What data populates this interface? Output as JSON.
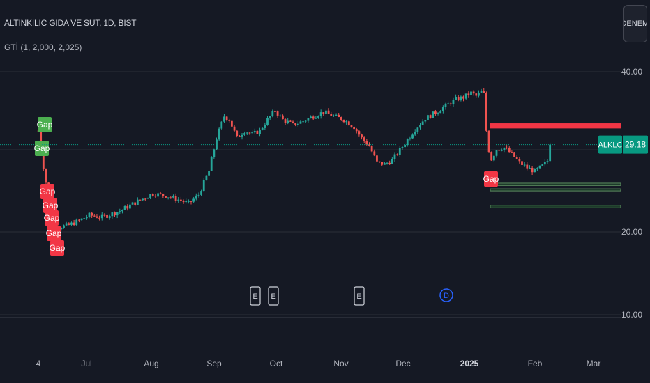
{
  "header": {
    "title": "ALTINKILIC GIDA VE SUT, 1D, BIST",
    "indicator": "GTİ (1, 2,000, 2,025)",
    "tag_button": "DENEME"
  },
  "colors": {
    "background": "#151924",
    "up": "#26a69a",
    "down": "#ef5350",
    "grid": "#2a2e39",
    "axis_text": "#b2b5be",
    "last_price": "#089981",
    "zone_red": "#f23645",
    "zone_green": "#4caf50",
    "gap_green": "#4caf50",
    "gap_red": "#f23645"
  },
  "chart_data": {
    "type": "candlestick",
    "title": "ALTINKILIC GIDA VE SUT, 1D, BIST",
    "x_tick_labels": [
      "4",
      "Jul",
      "Aug",
      "Sep",
      "Oct",
      "Nov",
      "Dec",
      "2025",
      "Feb",
      "Mar"
    ],
    "y_tick_labels": [
      "40.00",
      "20.00",
      "10.00"
    ],
    "y_scale": "log",
    "ylim": [
      9.5,
      52
    ],
    "grid": true,
    "last_price": {
      "symbol": "ALKLC",
      "value": "29.18"
    },
    "gap_labels": [
      {
        "text": "Gap",
        "kind": "up"
      },
      {
        "text": "Gap",
        "kind": "up"
      },
      {
        "text": "Gap",
        "kind": "down"
      },
      {
        "text": "Gap",
        "kind": "down"
      },
      {
        "text": "Gap",
        "kind": "down"
      },
      {
        "text": "Gap",
        "kind": "down"
      },
      {
        "text": "Gap",
        "kind": "down"
      },
      {
        "text": "Gap",
        "kind": "down"
      }
    ],
    "events": [
      {
        "symbol": "E"
      },
      {
        "symbol": "E"
      },
      {
        "symbol": "E"
      },
      {
        "symbol": "D"
      }
    ],
    "zones": [
      {
        "color": "red",
        "low": 31.3,
        "high": 32.0
      },
      {
        "color": "green",
        "low": 24.45,
        "high": 24.7
      },
      {
        "color": "green",
        "low": 23.9,
        "high": 24.1
      },
      {
        "color": "green",
        "low": 22.2,
        "high": 22.45
      }
    ],
    "price_path": [
      {
        "i": 0,
        "v": 31.0
      },
      {
        "i": 1,
        "v": 28.5
      },
      {
        "i": 2,
        "v": 26.5
      },
      {
        "i": 3,
        "v": 24.8
      },
      {
        "i": 4,
        "v": 23.0
      },
      {
        "i": 5,
        "v": 21.8
      },
      {
        "i": 6,
        "v": 20.9
      },
      {
        "i": 7,
        "v": 20.5
      },
      {
        "i": 8,
        "v": 20.4
      },
      {
        "i": 12,
        "v": 20.6
      },
      {
        "i": 16,
        "v": 21.0
      },
      {
        "i": 20,
        "v": 21.5
      },
      {
        "i": 25,
        "v": 21.3
      },
      {
        "i": 32,
        "v": 21.9
      },
      {
        "i": 38,
        "v": 22.7
      },
      {
        "i": 45,
        "v": 23.6
      },
      {
        "i": 50,
        "v": 23.4
      },
      {
        "i": 55,
        "v": 23.0
      },
      {
        "i": 59,
        "v": 22.6
      },
      {
        "i": 63,
        "v": 23.5
      },
      {
        "i": 67,
        "v": 26.0
      },
      {
        "i": 70,
        "v": 30.0
      },
      {
        "i": 73,
        "v": 33.0
      },
      {
        "i": 75,
        "v": 32.5
      },
      {
        "i": 78,
        "v": 30.0
      },
      {
        "i": 81,
        "v": 31.0
      },
      {
        "i": 84,
        "v": 30.5
      },
      {
        "i": 87,
        "v": 31.0
      },
      {
        "i": 90,
        "v": 32.5
      },
      {
        "i": 93,
        "v": 33.8
      },
      {
        "i": 96,
        "v": 32.5
      },
      {
        "i": 100,
        "v": 31.8
      },
      {
        "i": 104,
        "v": 32.3
      },
      {
        "i": 108,
        "v": 33.0
      },
      {
        "i": 112,
        "v": 33.6
      },
      {
        "i": 116,
        "v": 33.0
      },
      {
        "i": 120,
        "v": 32.5
      },
      {
        "i": 124,
        "v": 31.5
      },
      {
        "i": 127,
        "v": 30.0
      },
      {
        "i": 130,
        "v": 29.0
      },
      {
        "i": 133,
        "v": 27.0
      },
      {
        "i": 136,
        "v": 26.8
      },
      {
        "i": 139,
        "v": 27.3
      },
      {
        "i": 142,
        "v": 28.5
      },
      {
        "i": 145,
        "v": 29.8
      },
      {
        "i": 148,
        "v": 31.2
      },
      {
        "i": 152,
        "v": 32.7
      },
      {
        "i": 156,
        "v": 33.5
      },
      {
        "i": 160,
        "v": 34.5
      },
      {
        "i": 164,
        "v": 35.5
      },
      {
        "i": 167,
        "v": 35.8
      },
      {
        "i": 170,
        "v": 36.5
      },
      {
        "i": 172,
        "v": 36.0
      },
      {
        "i": 174,
        "v": 36.7
      },
      {
        "i": 175,
        "v": 36.3
      },
      {
        "i": 176,
        "v": 31.0
      },
      {
        "i": 177,
        "v": 28.5
      },
      {
        "i": 178,
        "v": 27.4
      },
      {
        "i": 180,
        "v": 28.6
      },
      {
        "i": 183,
        "v": 28.8
      },
      {
        "i": 186,
        "v": 28.0
      },
      {
        "i": 189,
        "v": 27.0
      },
      {
        "i": 192,
        "v": 26.4
      },
      {
        "i": 195,
        "v": 26.0
      },
      {
        "i": 198,
        "v": 26.6
      },
      {
        "i": 200,
        "v": 27.2
      },
      {
        "i": 201,
        "v": 29.18
      }
    ]
  }
}
